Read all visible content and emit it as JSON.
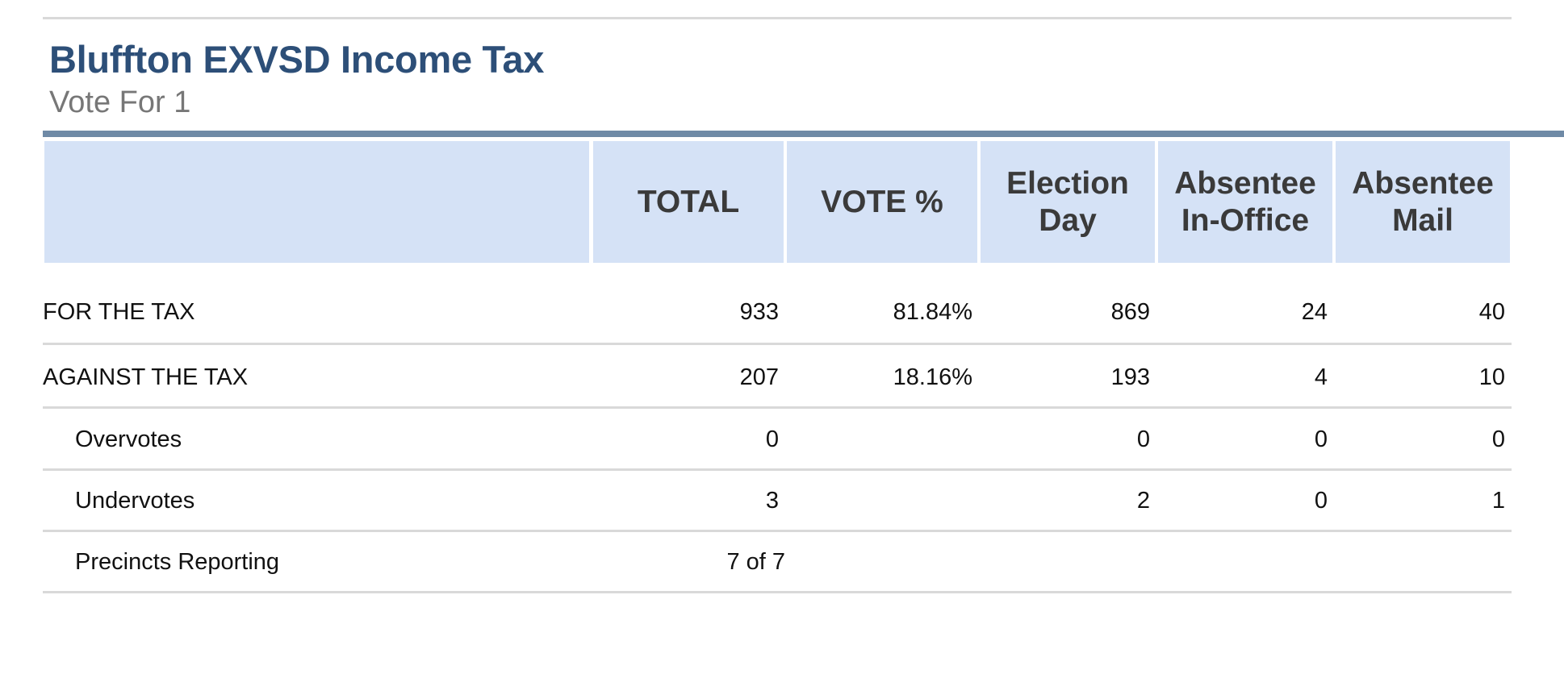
{
  "contest": {
    "title": "Bluffton EXVSD Income Tax",
    "subtitle": "Vote For 1"
  },
  "columns": {
    "choice": "",
    "total": "TOTAL",
    "vote_pct": "VOTE %",
    "election_day": "Election\nDay",
    "absentee_in_office": "Absentee\nIn-Office",
    "absentee_mail": "Absentee\nMail"
  },
  "rows": [
    {
      "choice": "FOR THE TAX",
      "total": "933",
      "vote_pct": "81.84%",
      "election_day": "869",
      "absentee_in_office": "24",
      "absentee_mail": "40"
    },
    {
      "choice": "AGAINST THE TAX",
      "total": "207",
      "vote_pct": "18.16%",
      "election_day": "193",
      "absentee_in_office": "4",
      "absentee_mail": "10"
    },
    {
      "choice": "Overvotes",
      "total": "0",
      "vote_pct": "",
      "election_day": "0",
      "absentee_in_office": "0",
      "absentee_mail": "0"
    },
    {
      "choice": "Undervotes",
      "total": "3",
      "vote_pct": "",
      "election_day": "2",
      "absentee_in_office": "0",
      "absentee_mail": "1"
    }
  ],
  "precincts": {
    "label": "Precincts Reporting",
    "value": "7 of 7"
  }
}
